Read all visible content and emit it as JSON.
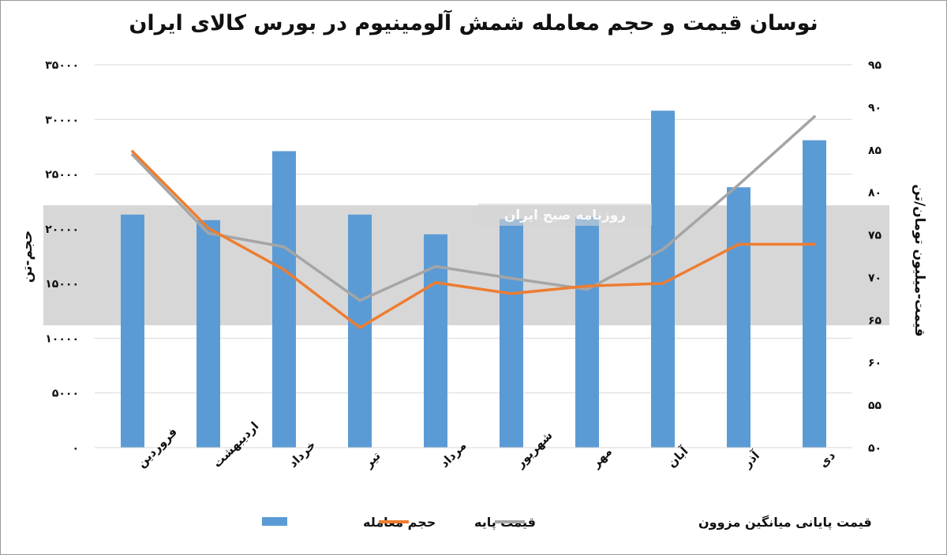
{
  "chart_data": {
    "type": "bar",
    "title": "نوسان قیمت و حجم معامله شمش آلومینیوم در بورس کالای ایران",
    "categories": [
      "فروردین",
      "اردیبهشت",
      "خرداد",
      "تیر",
      "مرداد",
      "شهریور",
      "مهر",
      "آبان",
      "آذر",
      "دی"
    ],
    "ylabel_left": "حجم-تن",
    "ylabel_right": "قیمت-میلیون تومان/تن",
    "ylim_left": [
      0,
      35000
    ],
    "ylim_right": [
      50,
      95
    ],
    "yticks_left": [
      "۰",
      "۵۰۰۰",
      "۱۰۰۰۰",
      "۱۵۰۰۰",
      "۲۰۰۰۰",
      "۲۵۰۰۰",
      "۳۰۰۰۰",
      "۳۵۰۰۰"
    ],
    "yticks_right": [
      "۵۰",
      "۵۵",
      "۶۰",
      "۶۵",
      "۷۰",
      "۷۵",
      "۸۰",
      "۸۵",
      "۹۰",
      "۹۵"
    ],
    "grid": true,
    "legend_position": "bottom",
    "series": [
      {
        "name": "حجم معامله",
        "type": "bar",
        "axis": "left",
        "color": "#5b9bd5",
        "values": [
          21300,
          20800,
          27100,
          21300,
          19500,
          20900,
          21100,
          30800,
          23800,
          28100
        ]
      },
      {
        "name": "قیمت پایه",
        "type": "line",
        "axis": "right",
        "color": "#ed7d31",
        "values": [
          84.8,
          75.8,
          70.9,
          64.1,
          69.4,
          68.1,
          69.0,
          69.3,
          73.9,
          73.9
        ]
      },
      {
        "name": "قیمت پایانی میانگین مزوون",
        "type": "line",
        "axis": "right",
        "color": "#a5a5a5",
        "values": [
          84.4,
          75.2,
          73.6,
          67.3,
          71.3,
          69.9,
          68.6,
          73.3,
          80.9,
          88.9
        ]
      }
    ],
    "watermark": "روزنامه صبح ایران"
  }
}
